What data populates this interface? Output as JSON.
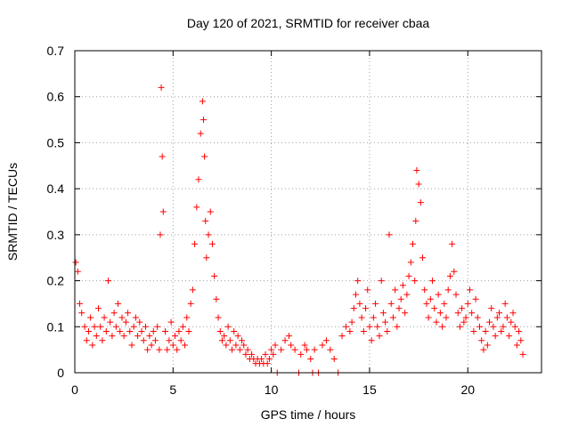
{
  "chart_data": {
    "type": "scatter",
    "title": "Day 120 of 2021, SRMTID for receiver cbaa",
    "xlabel": "GPS time / hours",
    "ylabel": "SRMTID / TECUs",
    "xlim": [
      0,
      23.75
    ],
    "ylim": [
      0,
      0.7
    ],
    "x_ticks": [
      0,
      5,
      10,
      15,
      20
    ],
    "x_tick_labels": [
      "0",
      "5",
      "10",
      "15",
      "20"
    ],
    "y_ticks": [
      0,
      0.1,
      0.2,
      0.3,
      0.4,
      0.5,
      0.6,
      0.7
    ],
    "y_tick_labels": [
      "0",
      "0.1",
      "0.2",
      "0.3",
      "0.4",
      "0.5",
      "0.6",
      "0.7"
    ],
    "grid": true,
    "marker": "plus",
    "series": [
      {
        "name": "SRMTID",
        "color": "#ff0000",
        "x": [
          0.05,
          0.15,
          0.25,
          0.35,
          0.5,
          0.6,
          0.7,
          0.8,
          0.9,
          1.0,
          1.1,
          1.2,
          1.3,
          1.4,
          1.5,
          1.6,
          1.7,
          1.8,
          1.9,
          2.0,
          2.1,
          2.2,
          2.3,
          2.4,
          2.5,
          2.6,
          2.7,
          2.8,
          2.9,
          3.0,
          3.1,
          3.2,
          3.3,
          3.4,
          3.5,
          3.6,
          3.7,
          3.8,
          3.9,
          4.0,
          4.1,
          4.2,
          4.3,
          4.35,
          4.4,
          4.45,
          4.5,
          4.6,
          4.7,
          4.8,
          4.9,
          5.0,
          5.1,
          5.2,
          5.3,
          5.4,
          5.5,
          5.6,
          5.7,
          5.8,
          5.9,
          6.0,
          6.1,
          6.2,
          6.3,
          6.4,
          6.5,
          6.55,
          6.6,
          6.65,
          6.7,
          6.8,
          6.9,
          7.0,
          7.1,
          7.2,
          7.3,
          7.4,
          7.5,
          7.6,
          7.7,
          7.8,
          7.9,
          8.0,
          8.1,
          8.2,
          8.3,
          8.4,
          8.5,
          8.6,
          8.7,
          8.8,
          8.9,
          9.0,
          9.1,
          9.2,
          9.3,
          9.4,
          9.5,
          9.6,
          9.7,
          9.8,
          9.9,
          10.0,
          10.1,
          10.2,
          10.3,
          10.5,
          10.7,
          10.9,
          11.0,
          11.2,
          11.4,
          11.5,
          11.7,
          11.8,
          12.0,
          12.1,
          12.2,
          12.4,
          12.6,
          12.8,
          13.0,
          13.2,
          13.4,
          13.6,
          13.8,
          14.0,
          14.1,
          14.2,
          14.3,
          14.4,
          14.5,
          14.6,
          14.7,
          14.8,
          14.9,
          15.0,
          15.1,
          15.2,
          15.3,
          15.4,
          15.5,
          15.6,
          15.7,
          15.8,
          15.9,
          16.0,
          16.1,
          16.2,
          16.3,
          16.4,
          16.5,
          16.6,
          16.7,
          16.8,
          16.9,
          17.0,
          17.1,
          17.2,
          17.3,
          17.35,
          17.4,
          17.5,
          17.6,
          17.7,
          17.8,
          17.9,
          18.0,
          18.1,
          18.2,
          18.3,
          18.4,
          18.5,
          18.6,
          18.7,
          18.8,
          18.9,
          19.0,
          19.1,
          19.2,
          19.3,
          19.4,
          19.5,
          19.6,
          19.7,
          19.8,
          19.9,
          20.0,
          20.1,
          20.2,
          20.3,
          20.4,
          20.5,
          20.6,
          20.7,
          20.8,
          20.9,
          21.0,
          21.1,
          21.2,
          21.3,
          21.4,
          21.5,
          21.6,
          21.7,
          21.8,
          21.9,
          22.0,
          22.1,
          22.2,
          22.3,
          22.4,
          22.5,
          22.6,
          22.7,
          22.8
        ],
        "y": [
          0.24,
          0.22,
          0.15,
          0.13,
          0.1,
          0.07,
          0.09,
          0.12,
          0.06,
          0.1,
          0.08,
          0.14,
          0.1,
          0.07,
          0.12,
          0.09,
          0.2,
          0.11,
          0.08,
          0.13,
          0.1,
          0.15,
          0.09,
          0.12,
          0.08,
          0.11,
          0.13,
          0.09,
          0.06,
          0.1,
          0.12,
          0.08,
          0.11,
          0.09,
          0.07,
          0.1,
          0.05,
          0.08,
          0.06,
          0.09,
          0.07,
          0.1,
          0.05,
          0.3,
          0.62,
          0.47,
          0.35,
          0.09,
          0.05,
          0.07,
          0.11,
          0.06,
          0.08,
          0.05,
          0.09,
          0.07,
          0.1,
          0.06,
          0.12,
          0.09,
          0.15,
          0.18,
          0.28,
          0.36,
          0.42,
          0.52,
          0.59,
          0.55,
          0.47,
          0.33,
          0.25,
          0.3,
          0.35,
          0.28,
          0.21,
          0.16,
          0.12,
          0.09,
          0.07,
          0.08,
          0.06,
          0.1,
          0.07,
          0.05,
          0.09,
          0.06,
          0.08,
          0.05,
          0.07,
          0.06,
          0.04,
          0.05,
          0.03,
          0.04,
          0.03,
          0.02,
          0.03,
          0.02,
          0.03,
          0.02,
          0.04,
          0.02,
          0.03,
          0.05,
          0.04,
          0.06,
          0.0,
          0.05,
          0.07,
          0.08,
          0.06,
          0.05,
          0.0,
          0.04,
          0.06,
          0.05,
          0.03,
          0.0,
          0.05,
          0.0,
          0.06,
          0.07,
          0.05,
          0.03,
          0.0,
          0.08,
          0.1,
          0.09,
          0.11,
          0.14,
          0.17,
          0.2,
          0.15,
          0.12,
          0.09,
          0.14,
          0.18,
          0.1,
          0.07,
          0.12,
          0.15,
          0.1,
          0.08,
          0.2,
          0.13,
          0.11,
          0.09,
          0.3,
          0.15,
          0.12,
          0.18,
          0.1,
          0.14,
          0.16,
          0.19,
          0.13,
          0.17,
          0.21,
          0.24,
          0.28,
          0.2,
          0.33,
          0.44,
          0.41,
          0.37,
          0.25,
          0.18,
          0.15,
          0.12,
          0.16,
          0.2,
          0.14,
          0.11,
          0.17,
          0.13,
          0.1,
          0.15,
          0.12,
          0.18,
          0.21,
          0.28,
          0.22,
          0.17,
          0.13,
          0.1,
          0.14,
          0.11,
          0.12,
          0.15,
          0.18,
          0.13,
          0.09,
          0.16,
          0.12,
          0.1,
          0.07,
          0.05,
          0.09,
          0.06,
          0.11,
          0.14,
          0.1,
          0.08,
          0.12,
          0.13,
          0.09,
          0.1,
          0.15,
          0.12,
          0.08,
          0.11,
          0.13,
          0.1,
          0.06,
          0.09,
          0.07,
          0.04
        ]
      }
    ]
  }
}
